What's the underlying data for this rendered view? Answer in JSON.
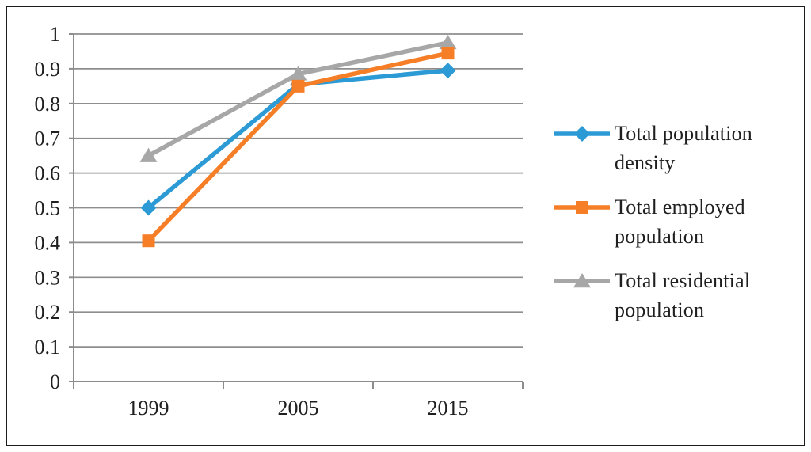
{
  "figure": {
    "background": "#ffffff",
    "border_color": "#1c1c1c"
  },
  "chart_data": {
    "type": "line",
    "title": "",
    "xlabel": "",
    "ylabel": "",
    "categories": [
      "1999",
      "2005",
      "2015"
    ],
    "series": [
      {
        "name": "Total population density",
        "marker": "diamond",
        "color": "#2b9ad5",
        "values": [
          0.5,
          0.855,
          0.895
        ]
      },
      {
        "name": "Total employed population",
        "marker": "square",
        "color": "#f57e27",
        "values": [
          0.405,
          0.85,
          0.945
        ]
      },
      {
        "name": "Total residential population",
        "marker": "triangle",
        "color": "#a7a7a7",
        "values": [
          0.65,
          0.885,
          0.975
        ]
      }
    ],
    "draw_order": [
      0,
      2,
      1
    ],
    "ylim": [
      0,
      1
    ],
    "ytick_step": 0.1,
    "ytick_labels": [
      "0",
      "0.1",
      "0.2",
      "0.3",
      "0.4",
      "0.5",
      "0.6",
      "0.7",
      "0.8",
      "0.9",
      "1"
    ],
    "grid": true,
    "grid_color": "#8e8e8e",
    "axis_color": "#8c8c8c",
    "text_color": "#1f1f1f",
    "legend_position": "right"
  }
}
